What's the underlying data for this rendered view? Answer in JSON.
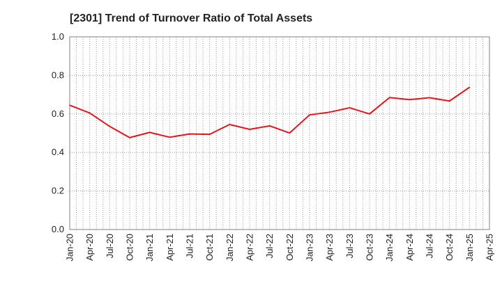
{
  "chart_data": {
    "type": "line",
    "title": "[2301]  Trend of Turnover Ratio of Total Assets",
    "xlabel": "",
    "ylabel": "",
    "ylim": [
      0,
      1.0
    ],
    "yticks": [
      "0.0",
      "0.2",
      "0.4",
      "0.6",
      "0.8",
      "1.0"
    ],
    "xticks": [
      "Jan-20",
      "Apr-20",
      "Jul-20",
      "Oct-20",
      "Jan-21",
      "Apr-21",
      "Jul-21",
      "Oct-21",
      "Jan-22",
      "Apr-22",
      "Jul-22",
      "Oct-22",
      "Jan-23",
      "Apr-23",
      "Jul-23",
      "Oct-23",
      "Jan-24",
      "Apr-24",
      "Jul-24",
      "Oct-24",
      "Jan-25",
      "Apr-25"
    ],
    "grid": true,
    "series": [
      {
        "color": "#e8131b",
        "x": [
          "Jan-20",
          "Apr-20",
          "Jul-20",
          "Oct-20",
          "Jan-21",
          "Apr-21",
          "Jul-21",
          "Oct-21",
          "Jan-22",
          "Apr-22",
          "Jul-22",
          "Oct-22",
          "Jan-23",
          "Apr-23",
          "Jul-23",
          "Oct-23",
          "Jan-24",
          "Apr-24",
          "Jul-24",
          "Oct-24",
          "Jan-25"
        ],
        "values": [
          0.645,
          0.605,
          0.535,
          0.477,
          0.504,
          0.479,
          0.496,
          0.494,
          0.545,
          0.52,
          0.538,
          0.501,
          0.595,
          0.609,
          0.632,
          0.6,
          0.685,
          0.674,
          0.684,
          0.667,
          0.738
        ]
      }
    ]
  }
}
